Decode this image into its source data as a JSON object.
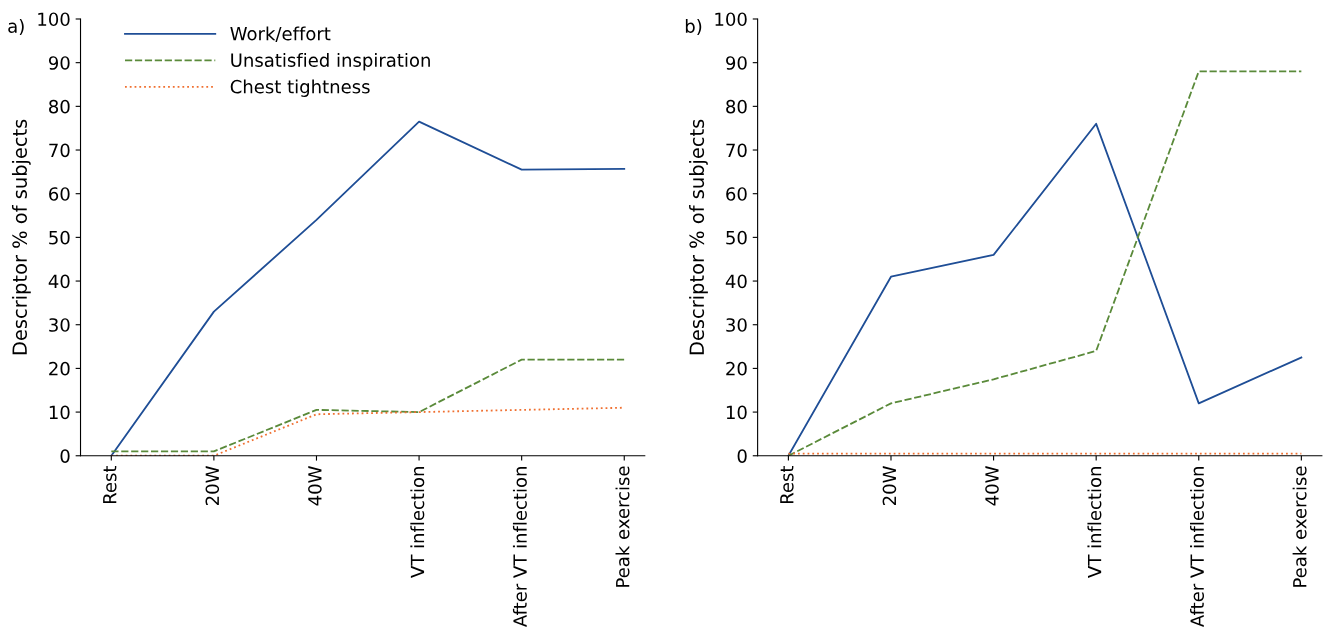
{
  "chart_data": [
    {
      "type": "line",
      "title": "a)",
      "ylabel": "Descriptor % of subjects",
      "categories": [
        "Rest",
        "20W",
        "40W",
        "VT inflection",
        "After VT inflection",
        "Peak exercise"
      ],
      "ylim": [
        0,
        100
      ],
      "yticks": [
        0,
        10,
        20,
        30,
        40,
        50,
        60,
        70,
        80,
        90,
        100
      ],
      "grid": false,
      "legend": "top left",
      "marker": "none",
      "series": [
        {
          "name": "Work/effort",
          "color": "#1f4e96",
          "line_style": "solid",
          "values": [
            0,
            33,
            54,
            76.5,
            65.5,
            65.7
          ]
        },
        {
          "name": "Unsatisfied inspiration",
          "color": "#5a8a3a",
          "line_style": "dashed",
          "values": [
            1,
            1,
            10.5,
            10,
            22,
            22
          ]
        },
        {
          "name": "Chest tightness",
          "color": "#f07030",
          "line_style": "dotted",
          "values": [
            0,
            0,
            9.5,
            10,
            10.5,
            11
          ]
        }
      ]
    },
    {
      "type": "line",
      "title": "b)",
      "ylabel": "Descriptor % of subjects",
      "categories": [
        "Rest",
        "20W",
        "40W",
        "VT inflection",
        "After VT inflection",
        "Peak exercise"
      ],
      "ylim": [
        0,
        100
      ],
      "yticks": [
        0,
        10,
        20,
        30,
        40,
        50,
        60,
        70,
        80,
        90,
        100
      ],
      "grid": false,
      "legend": false,
      "marker": "none",
      "series": [
        {
          "color": "#1f4e96",
          "line_style": "solid",
          "values": [
            0,
            41,
            46,
            76,
            12,
            22.5
          ]
        },
        {
          "color": "#5a8a3a",
          "line_style": "dashed",
          "values": [
            0,
            12,
            17.5,
            24,
            88,
            88
          ]
        },
        {
          "color": "#f07030",
          "line_style": "dotted",
          "values": [
            0.5,
            0.5,
            0.5,
            0.5,
            0.5,
            0.5
          ]
        }
      ]
    }
  ]
}
